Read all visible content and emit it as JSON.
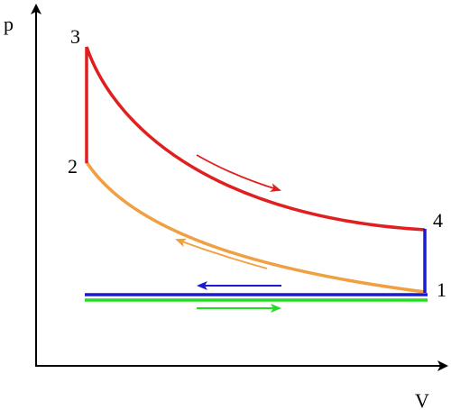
{
  "axes": {
    "y_label": "p",
    "x_label": "V"
  },
  "states": [
    "1",
    "2",
    "3",
    "4"
  ]
}
